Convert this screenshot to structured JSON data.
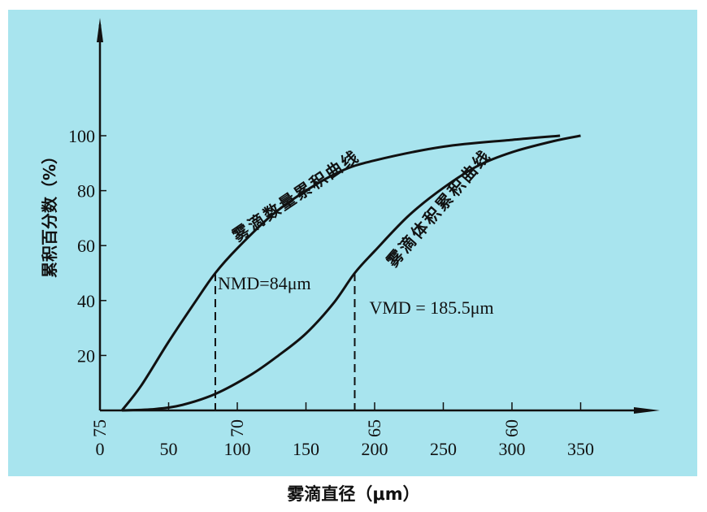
{
  "chart_data": {
    "type": "line",
    "title": "",
    "xlabel": "雾滴直径（μm）",
    "ylabel": "累积百分数（%）",
    "xlim": [
      0,
      350
    ],
    "ylim": [
      0,
      100
    ],
    "x_ticks": [
      "0",
      "50",
      "100",
      "150",
      "200",
      "250",
      "300",
      "350"
    ],
    "y_ticks": [
      "20",
      "40",
      "60",
      "80",
      "100"
    ],
    "secondary_x_ticks": [
      {
        "label": "75",
        "at": 0
      },
      {
        "label": "70",
        "at": 100
      },
      {
        "label": "65",
        "at": 200
      },
      {
        "label": "60",
        "at": 300
      }
    ],
    "grid": false,
    "series": [
      {
        "name": "雾滴数量累积曲线",
        "x": [
          16,
          30,
          50,
          70,
          84,
          100,
          125,
          150,
          175,
          200,
          250,
          300,
          335
        ],
        "y": [
          0,
          9,
          25,
          40,
          50,
          59,
          71,
          80,
          87,
          91,
          96,
          98.5,
          100
        ]
      },
      {
        "name": "雾滴体积累积曲线",
        "x": [
          16,
          40,
          60,
          84,
          110,
          130,
          150,
          170,
          185.5,
          200,
          225,
          250,
          275,
          300,
          330,
          350
        ],
        "y": [
          0,
          0.5,
          2,
          6,
          13,
          20,
          28,
          39,
          50,
          58,
          71,
          81,
          89,
          94,
          98,
          100
        ]
      }
    ],
    "annotations": [
      {
        "text": "NMD=84μm",
        "x": 84,
        "y": 50
      },
      {
        "text": "VMD = 185.5μm",
        "x": 185.5,
        "y": 50
      }
    ]
  }
}
